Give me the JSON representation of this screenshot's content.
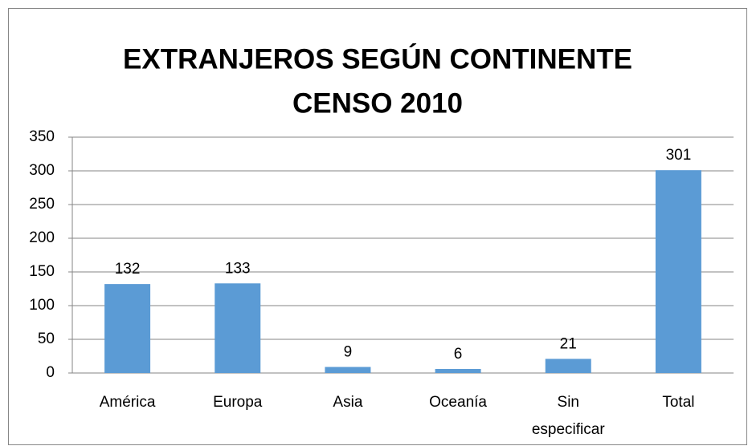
{
  "chart_data": {
    "type": "bar",
    "title": [
      "EXTRANJEROS SEGÚN CONTINENTE",
      "CENSO 2010"
    ],
    "categories": [
      "América",
      "Europa",
      "Asia",
      "Oceanía",
      "Sin especificar",
      "Total"
    ],
    "values": [
      132,
      133,
      9,
      6,
      21,
      301
    ],
    "color": "#5b9bd5",
    "ylim": [
      0,
      350
    ],
    "yticks": [
      0,
      50,
      100,
      150,
      200,
      250,
      300,
      350
    ],
    "grid": true
  }
}
